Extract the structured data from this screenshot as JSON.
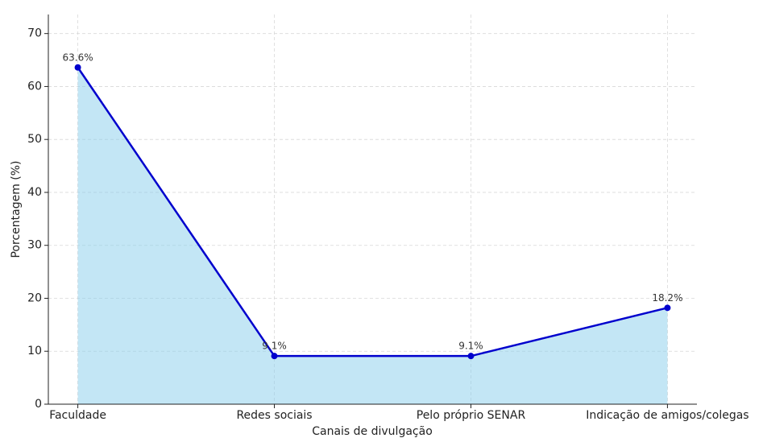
{
  "chart_data": {
    "type": "line",
    "x_label": "Canais de divulgação",
    "y_label": "Porcentagem (%)",
    "categories": [
      "Faculdade",
      "Redes sociais",
      "Pelo próprio SENAR",
      "Indicação de amigos/colegas"
    ],
    "values": [
      63.6,
      9.1,
      9.1,
      18.2
    ],
    "value_labels": [
      "63.6%",
      "9.1%",
      "9.1%",
      "18.2%"
    ],
    "color": "#0000cd",
    "fill_color": "#87ceeb",
    "ylim": [
      0,
      73.6
    ],
    "yticks": [
      0,
      10,
      20,
      30,
      40,
      50,
      60,
      70
    ],
    "grid": true
  }
}
